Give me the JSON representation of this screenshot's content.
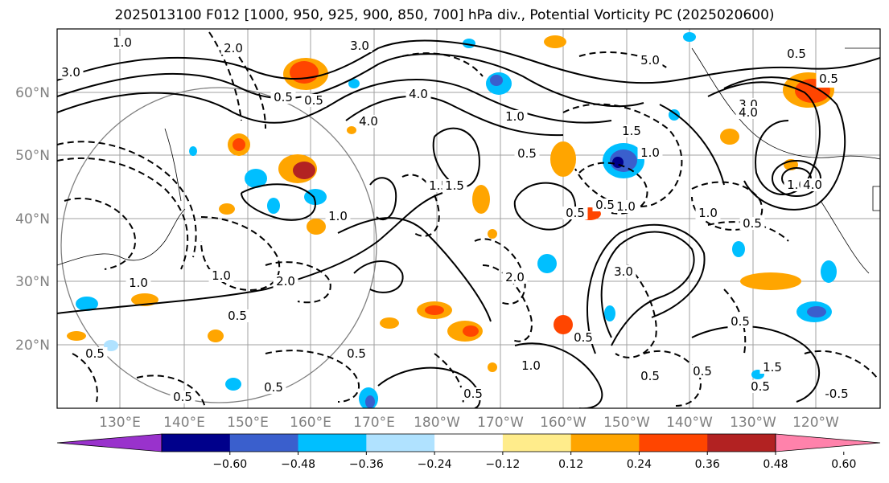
{
  "title": "2025013100 F012 [1000, 950, 925, 900, 850, 700] hPa div., Potential Vorticity PC (2025020600)",
  "map": {
    "lat_labels": [
      "60°N",
      "50°N",
      "40°N",
      "30°N",
      "20°N"
    ],
    "lon_labels": [
      "130°E",
      "140°E",
      "150°E",
      "160°E",
      "170°E",
      "180°W",
      "170°W",
      "160°W",
      "150°W",
      "140°W",
      "130°W",
      "120°W"
    ],
    "contour_labels": [
      {
        "text": "3.0"
      },
      {
        "text": "1.0"
      },
      {
        "text": "2.0"
      },
      {
        "text": "3.0"
      },
      {
        "text": "0.5"
      },
      {
        "text": "4.0"
      },
      {
        "text": "5.0"
      },
      {
        "text": "3.0"
      },
      {
        "text": "4.0"
      },
      {
        "text": "1.0"
      },
      {
        "text": "0.5"
      },
      {
        "text": "1.5"
      },
      {
        "text": "1.0"
      },
      {
        "text": "1.0"
      },
      {
        "text": "1.5"
      },
      {
        "text": "0.5"
      },
      {
        "text": "1.0"
      },
      {
        "text": "0.5"
      },
      {
        "text": "1.0"
      },
      {
        "text": "0.5"
      },
      {
        "text": "0.5"
      },
      {
        "text": "1.0"
      },
      {
        "text": "2.0"
      },
      {
        "text": "3.0"
      },
      {
        "text": "0.5"
      },
      {
        "text": "0.5"
      },
      {
        "text": "1.0"
      },
      {
        "text": "0.5"
      },
      {
        "text": "0.5"
      },
      {
        "text": "0.5"
      },
      {
        "text": "1.0"
      },
      {
        "text": "0.5"
      },
      {
        "text": "1.5"
      },
      {
        "text": "0.5"
      },
      {
        "text": "1.0"
      },
      {
        "text": "0.5"
      },
      {
        "text": "2.0"
      },
      {
        "text": "0.5"
      },
      {
        "text": "0.5"
      },
      {
        "text": "0.5"
      },
      {
        "text": "0.5"
      },
      {
        "text": "0.5"
      },
      {
        "text": "0.5"
      },
      {
        "text": "-0.5"
      },
      {
        "text": "4.0"
      },
      {
        "text": "4.0"
      },
      {
        "text": "1.5"
      }
    ]
  },
  "colorbar": {
    "colors": [
      "#9932CC",
      "#00008B",
      "#3A5FCD",
      "#00BFFF",
      "#B0E2FF",
      "#FFFFFF",
      "#FFEC8B",
      "#FFA500",
      "#FF4500",
      "#B22222",
      "#FF82AB"
    ],
    "tick_labels": [
      "−0.60",
      "−0.48",
      "−0.36",
      "−0.24",
      "−0.12",
      "0.12",
      "0.24",
      "0.36",
      "0.48",
      "0.60"
    ]
  }
}
